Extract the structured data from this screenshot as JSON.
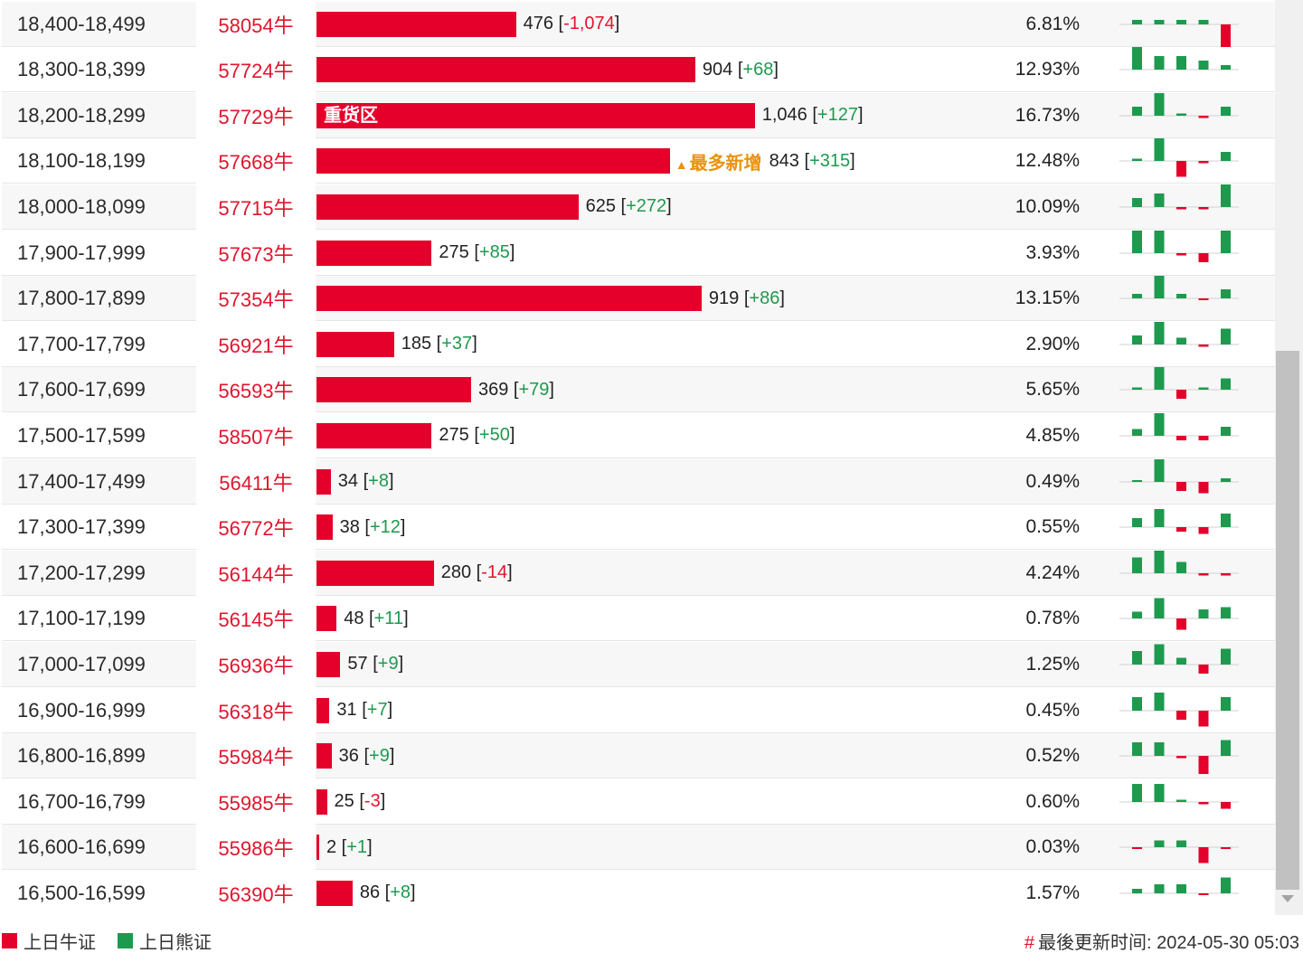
{
  "colors": {
    "bull": "#e4002b",
    "bear": "#1e9a4e",
    "tag": "#e89211",
    "code": "#e1152e"
  },
  "rows": [
    {
      "range": "18,400-18,499",
      "code": "58054牛",
      "count": "476",
      "change": "-1,074",
      "pct": "6.81%",
      "bar_frac": 0.2081,
      "spark": [
        -1,
        -1,
        -1,
        -1,
        5
      ]
    },
    {
      "range": "18,300-18,399",
      "code": "57724牛",
      "count": "904",
      "change": "+68",
      "pct": "12.93%",
      "bar_frac": 0.3952,
      "spark": [
        -5,
        -3,
        -3,
        -2,
        -1
      ]
    },
    {
      "range": "18,200-18,299",
      "code": "57729牛",
      "count": "1,046",
      "change": "+127",
      "pct": "16.73%",
      "bar_frac": 0.4573,
      "label": "重货区",
      "spark": [
        -2,
        -5,
        -0.5,
        0.5,
        -2
      ]
    },
    {
      "range": "18,100-18,199",
      "code": "57668牛",
      "count": "843",
      "change": "+315",
      "pct": "12.48%",
      "bar_frac": 0.3686,
      "tag": "最多新增",
      "tag_arrow": "▲",
      "spark": [
        -0.5,
        -5,
        3.5,
        0.5,
        -2
      ]
    },
    {
      "range": "18,000-18,099",
      "code": "57715牛",
      "count": "625",
      "change": "+272",
      "pct": "10.09%",
      "bar_frac": 0.2732,
      "spark": [
        -2,
        -3,
        0.5,
        0.5,
        -5
      ]
    },
    {
      "range": "17,900-17,999",
      "code": "57673牛",
      "count": "275",
      "change": "+85",
      "pct": "3.93%",
      "bar_frac": 0.1202,
      "spark": [
        -5,
        -5,
        0.5,
        2,
        -5
      ]
    },
    {
      "range": "17,800-17,899",
      "code": "57354牛",
      "count": "919",
      "change": "+86",
      "pct": "13.15%",
      "bar_frac": 0.4018,
      "spark": [
        -1,
        -5,
        -1,
        0,
        -2
      ]
    },
    {
      "range": "17,700-17,799",
      "code": "56921牛",
      "count": "185",
      "change": "+37",
      "pct": "2.90%",
      "bar_frac": 0.0809,
      "spark": [
        -2,
        -5,
        -1.5,
        0.5,
        -3.5
      ]
    },
    {
      "range": "17,600-17,699",
      "code": "56593牛",
      "count": "369",
      "change": "+79",
      "pct": "5.65%",
      "bar_frac": 0.1613,
      "spark": [
        -0.5,
        -5,
        2,
        -0.5,
        -2.5
      ]
    },
    {
      "range": "17,500-17,599",
      "code": "58507牛",
      "count": "275",
      "change": "+50",
      "pct": "4.85%",
      "bar_frac": 0.1202,
      "spark": [
        -1.5,
        -5,
        1,
        1,
        -2
      ]
    },
    {
      "range": "17,400-17,499",
      "code": "56411牛",
      "count": "34",
      "change": "+8",
      "pct": "0.49%",
      "bar_frac": 0.0149,
      "spark": [
        -0.3,
        -5,
        2,
        2.5,
        -0.8
      ]
    },
    {
      "range": "17,300-17,399",
      "code": "56772牛",
      "count": "38",
      "change": "+12",
      "pct": "0.55%",
      "bar_frac": 0.0166,
      "spark": [
        -2,
        -4,
        1,
        1.5,
        -3
      ]
    },
    {
      "range": "17,200-17,299",
      "code": "56144牛",
      "count": "280",
      "change": "-14",
      "pct": "4.24%",
      "bar_frac": 0.1224,
      "spark": [
        -3.5,
        -5,
        -2.5,
        0.5,
        0.5
      ]
    },
    {
      "range": "17,100-17,199",
      "code": "56145牛",
      "count": "48",
      "change": "+11",
      "pct": "0.78%",
      "bar_frac": 0.021,
      "spark": [
        -1.5,
        -4.5,
        2.5,
        -2,
        -2.5
      ]
    },
    {
      "range": "17,000-17,099",
      "code": "56936牛",
      "count": "57",
      "change": "+9",
      "pct": "1.25%",
      "bar_frac": 0.0249,
      "spark": [
        -3,
        -4.5,
        -1.5,
        2,
        -3.5
      ]
    },
    {
      "range": "16,900-16,999",
      "code": "56318牛",
      "count": "31",
      "change": "+7",
      "pct": "0.45%",
      "bar_frac": 0.0136,
      "spark": [
        -3,
        -4,
        2,
        3.5,
        -3
      ]
    },
    {
      "range": "16,800-16,899",
      "code": "55984牛",
      "count": "36",
      "change": "+9",
      "pct": "0.52%",
      "bar_frac": 0.0157,
      "spark": [
        -3,
        -3,
        0.5,
        4,
        -3.5
      ]
    },
    {
      "range": "16,700-16,799",
      "code": "55985牛",
      "count": "25",
      "change": "-3",
      "pct": "0.60%",
      "bar_frac": 0.0109,
      "spark": [
        -4,
        -4,
        -0.5,
        0.5,
        1.5
      ]
    },
    {
      "range": "16,600-16,699",
      "code": "55986牛",
      "count": "2",
      "change": "+1",
      "pct": "0.03%",
      "bar_frac": 0.0009,
      "spark": [
        0,
        -1.5,
        -1.5,
        3.5,
        0
      ]
    },
    {
      "range": "16,500-16,599",
      "code": "56390牛",
      "count": "86",
      "change": "+8",
      "pct": "1.57%",
      "bar_frac": 0.0376,
      "spark": [
        -1,
        -2,
        -2,
        0,
        -3.5
      ]
    }
  ],
  "legend": {
    "bull": "上日牛证",
    "bear": "上日熊证"
  },
  "footer": {
    "hash": "#",
    "update": "最後更新时间: 2024-05-30 05:03"
  }
}
